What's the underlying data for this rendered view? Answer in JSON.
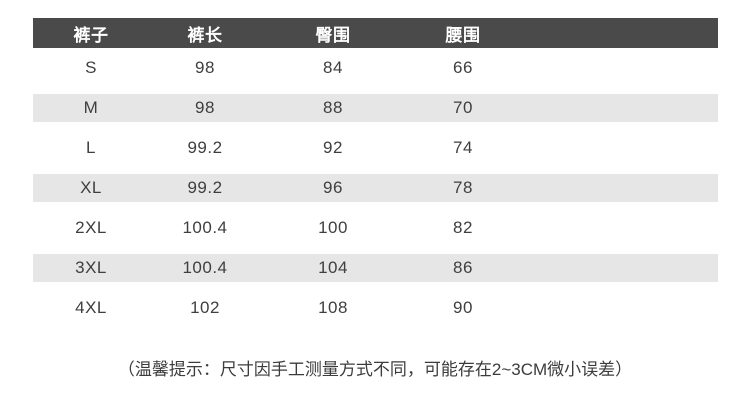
{
  "chart_data": {
    "type": "table",
    "columns": [
      "裤子",
      "裤长",
      "臀围",
      "腰围"
    ],
    "rows": [
      [
        "S",
        "98",
        "84",
        "66"
      ],
      [
        "M",
        "98",
        "88",
        "70"
      ],
      [
        "L",
        "99.2",
        "92",
        "74"
      ],
      [
        "XL",
        "99.2",
        "96",
        "78"
      ],
      [
        "2XL",
        "100.4",
        "100",
        "82"
      ],
      [
        "3XL",
        "100.4",
        "104",
        "86"
      ],
      [
        "4XL",
        "102",
        "108",
        "90"
      ]
    ],
    "note": "（温馨提示：尺寸因手工测量方式不同，可能存在2~3CM微小误差）",
    "layout_hints": {
      "striped": "alternating rows M, XL, 3XL shaded",
      "header_style": "dark band with white bold text"
    }
  },
  "colors": {
    "background": "#ffffff",
    "header_bg": "#4a4a4a",
    "header_text": "#ffffff",
    "alt_row_bg": "#e6e6e6",
    "body_text": "#3f3f3f",
    "note_text": "#3c3c3c"
  }
}
